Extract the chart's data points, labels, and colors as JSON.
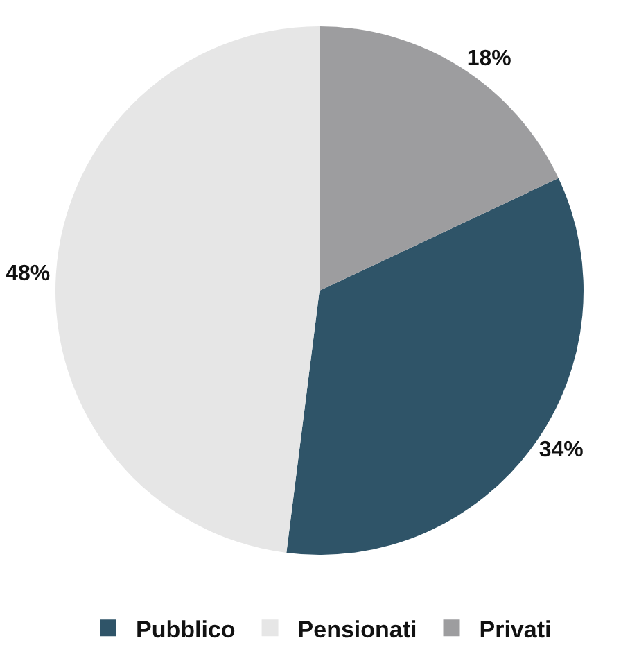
{
  "chart_data": {
    "type": "pie",
    "categories": [
      "Pubblico",
      "Pensionati",
      "Privati"
    ],
    "values": [
      34,
      48,
      18
    ],
    "colors": [
      "#2f5468",
      "#e6e6e6",
      "#9d9d9f"
    ],
    "value_labels": [
      "34%",
      "48%",
      "18%"
    ],
    "legend": "bottom"
  }
}
